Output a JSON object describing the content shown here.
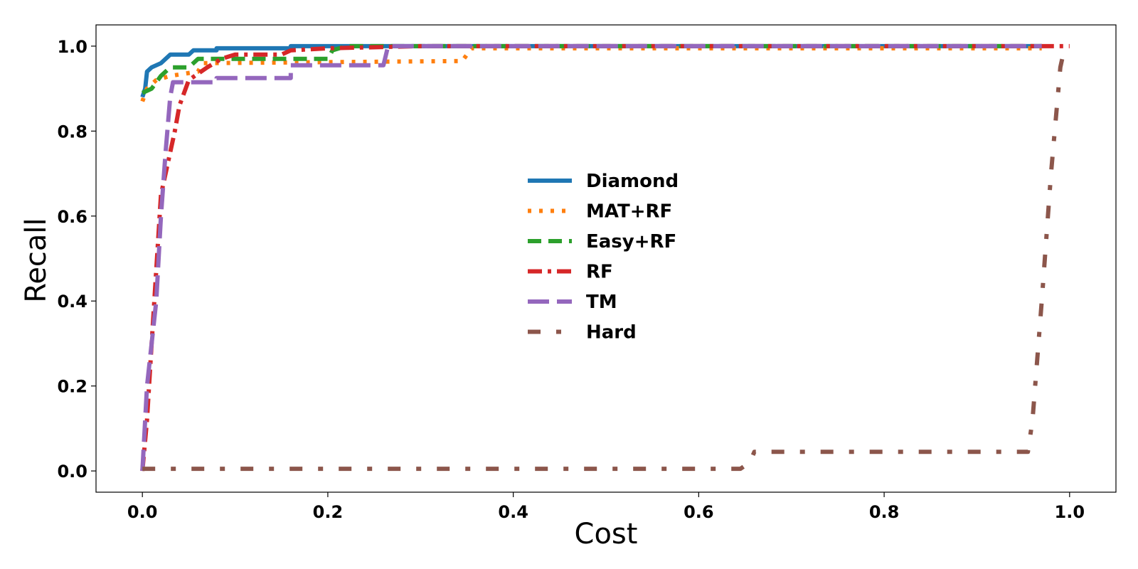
{
  "chart_data": {
    "type": "line",
    "title": "",
    "xlabel": "Cost",
    "ylabel": "Recall",
    "xlim": [
      -0.05,
      1.05
    ],
    "ylim": [
      -0.05,
      1.05
    ],
    "xticks": [
      "0.0",
      "0.2",
      "0.4",
      "0.6",
      "0.8",
      "1.0"
    ],
    "yticks": [
      "0.0",
      "0.2",
      "0.4",
      "0.6",
      "0.8",
      "1.0"
    ],
    "grid": false,
    "legend": {
      "placement": "center"
    },
    "series": [
      {
        "name": "Diamond",
        "color": "#1f77b4",
        "style": "solid",
        "points": [
          [
            0,
            0.88
          ],
          [
            0.003,
            0.9
          ],
          [
            0.005,
            0.94
          ],
          [
            0.01,
            0.95
          ],
          [
            0.02,
            0.96
          ],
          [
            0.03,
            0.98
          ],
          [
            0.05,
            0.98
          ],
          [
            0.055,
            0.99
          ],
          [
            0.08,
            0.99
          ],
          [
            0.08,
            0.995
          ],
          [
            0.16,
            0.995
          ],
          [
            0.16,
            1.0
          ],
          [
            0.97,
            1.0
          ]
        ]
      },
      {
        "name": "MAT+RF",
        "color": "#ff7f0e",
        "style": "dotted",
        "points": [
          [
            0,
            0.87
          ],
          [
            0.005,
            0.9
          ],
          [
            0.01,
            0.91
          ],
          [
            0.015,
            0.92
          ],
          [
            0.03,
            0.93
          ],
          [
            0.06,
            0.94
          ],
          [
            0.065,
            0.96
          ],
          [
            0.345,
            0.965
          ],
          [
            0.355,
            0.995
          ],
          [
            0.97,
            0.995
          ]
        ]
      },
      {
        "name": "Easy+RF",
        "color": "#2ca02c",
        "style": "dashed",
        "points": [
          [
            0,
            0.89
          ],
          [
            0.01,
            0.9
          ],
          [
            0.02,
            0.93
          ],
          [
            0.03,
            0.95
          ],
          [
            0.05,
            0.95
          ],
          [
            0.06,
            0.97
          ],
          [
            0.2,
            0.97
          ],
          [
            0.205,
            0.99
          ],
          [
            0.22,
            1.0
          ],
          [
            0.97,
            1.0
          ]
        ]
      },
      {
        "name": "RF",
        "color": "#d62728",
        "style": "dashdot",
        "points": [
          [
            0,
            0.0
          ],
          [
            0.005,
            0.12
          ],
          [
            0.01,
            0.3
          ],
          [
            0.02,
            0.65
          ],
          [
            0.03,
            0.75
          ],
          [
            0.035,
            0.8
          ],
          [
            0.04,
            0.86
          ],
          [
            0.05,
            0.92
          ],
          [
            0.07,
            0.95
          ],
          [
            0.085,
            0.97
          ],
          [
            0.1,
            0.98
          ],
          [
            0.15,
            0.98
          ],
          [
            0.16,
            0.99
          ],
          [
            0.2,
            0.995
          ],
          [
            0.3,
            1.0
          ],
          [
            1.0,
            1.0
          ]
        ]
      },
      {
        "name": "TM",
        "color": "#9467bd",
        "style": "longdash",
        "points": [
          [
            0,
            0.0
          ],
          [
            0.005,
            0.2
          ],
          [
            0.015,
            0.4
          ],
          [
            0.02,
            0.6
          ],
          [
            0.025,
            0.75
          ],
          [
            0.03,
            0.88
          ],
          [
            0.033,
            0.915
          ],
          [
            0.08,
            0.915
          ],
          [
            0.08,
            0.925
          ],
          [
            0.16,
            0.925
          ],
          [
            0.16,
            0.955
          ],
          [
            0.26,
            0.955
          ],
          [
            0.265,
            1.0
          ],
          [
            0.97,
            1.0
          ]
        ]
      },
      {
        "name": "Hard",
        "color": "#8c564b",
        "style": "dashdot2",
        "points": [
          [
            0,
            0.005
          ],
          [
            0.645,
            0.005
          ],
          [
            0.655,
            0.02
          ],
          [
            0.66,
            0.045
          ],
          [
            0.955,
            0.045
          ],
          [
            0.96,
            0.12
          ],
          [
            0.97,
            0.4
          ],
          [
            0.98,
            0.7
          ],
          [
            0.99,
            0.95
          ],
          [
            0.995,
            1.0
          ]
        ]
      }
    ]
  }
}
